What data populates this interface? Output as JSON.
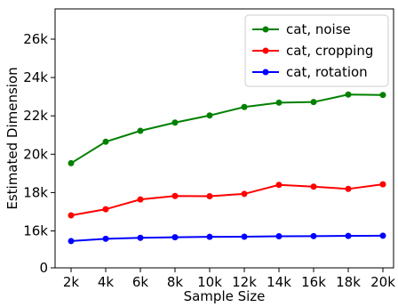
{
  "chart_data": {
    "type": "line",
    "xlabel": "Sample Size",
    "ylabel": "Estimated Dimension",
    "categories": [
      "2k",
      "4k",
      "6k",
      "8k",
      "10k",
      "12k",
      "14k",
      "16k",
      "18k",
      "20k"
    ],
    "x": [
      2000,
      4000,
      6000,
      8000,
      10000,
      12000,
      14000,
      16000,
      18000,
      20000
    ],
    "y_ticks": [
      "0",
      "16k",
      "18k",
      "20k",
      "22k",
      "24k",
      "26k"
    ],
    "legend_position": "top-right",
    "grid": false,
    "series": [
      {
        "name": "cat, noise",
        "color": "#008000",
        "values": [
          19530,
          20650,
          21220,
          21650,
          22020,
          22460,
          22690,
          22720,
          23110,
          23090
        ]
      },
      {
        "name": "cat, cropping",
        "color": "#ff0000",
        "values": [
          16810,
          17130,
          17640,
          17820,
          17810,
          17930,
          18400,
          18310,
          18190,
          18430
        ]
      },
      {
        "name": "cat, rotation",
        "color": "#0000ff",
        "values": [
          15470,
          15590,
          15640,
          15670,
          15690,
          15700,
          15720,
          15730,
          15740,
          15750
        ]
      }
    ]
  }
}
